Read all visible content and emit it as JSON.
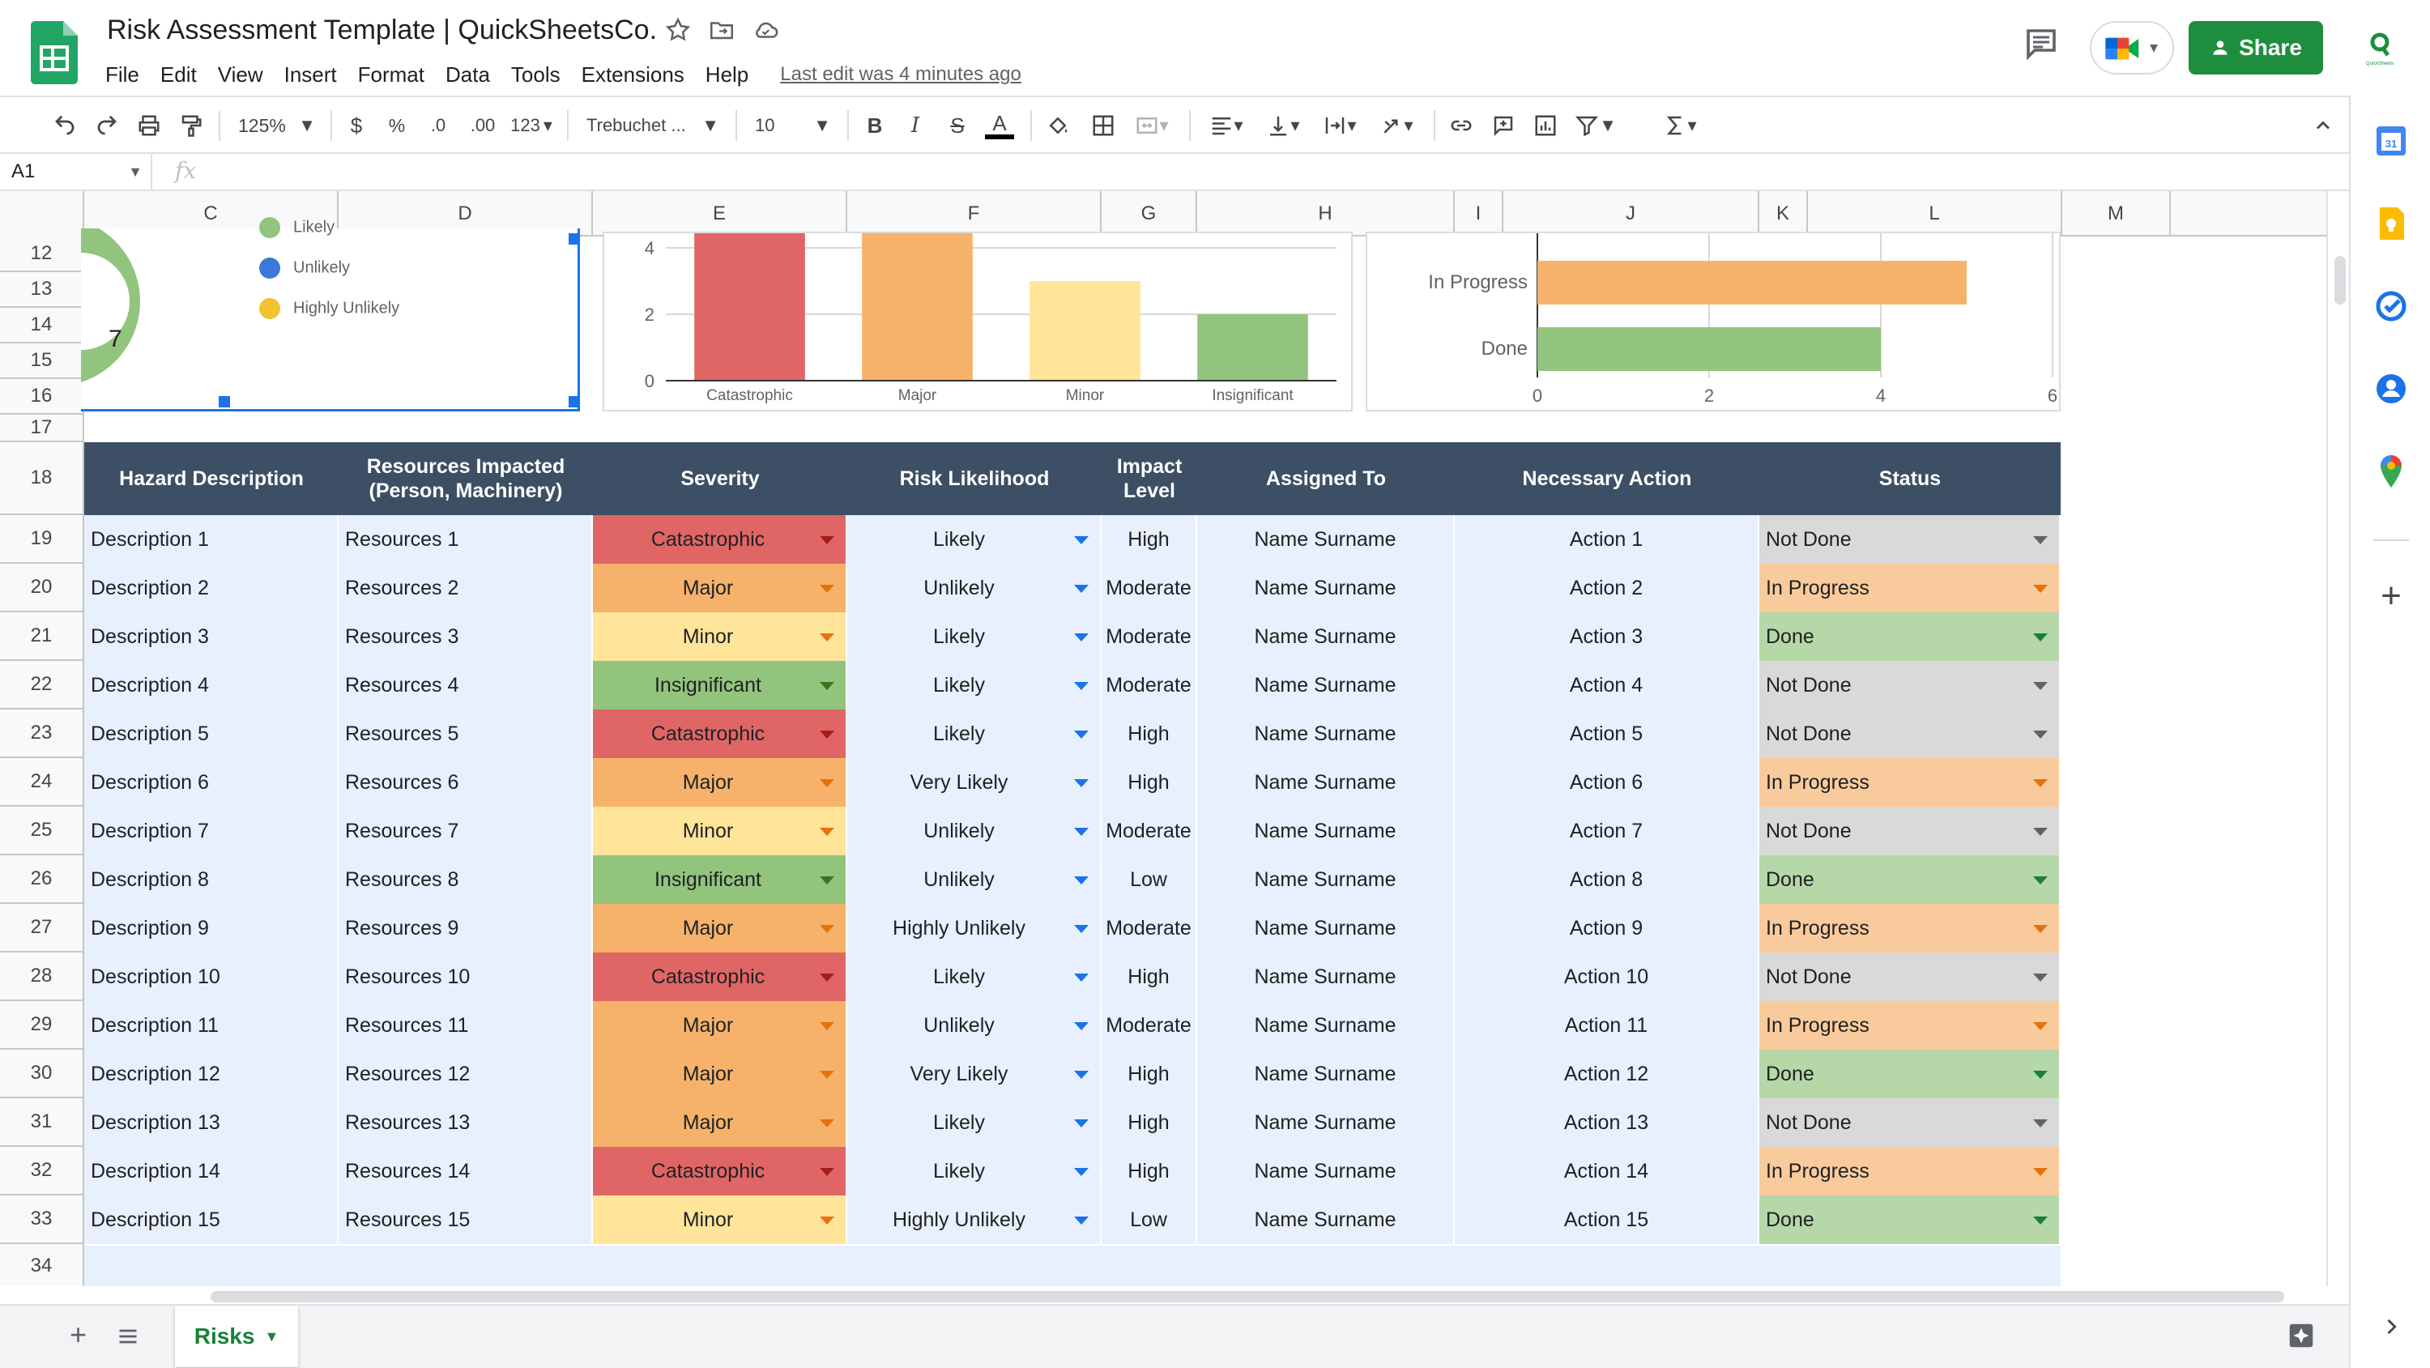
{
  "doc": {
    "title": "Risk Assessment Template | QuickSheetsCo.",
    "last_edit": "Last edit was 4 minutes ago",
    "share_label": "Share"
  },
  "menu": [
    "File",
    "Edit",
    "View",
    "Insert",
    "Format",
    "Data",
    "Tools",
    "Extensions",
    "Help"
  ],
  "toolbar": {
    "zoom": "125%",
    "currency": "$",
    "percent": "%",
    "dec_less": ".0",
    "dec_more": ".00",
    "number_format": "123",
    "font": "Trebuchet ...",
    "font_size": "10",
    "bold": "B",
    "italic": "I",
    "strike": "S",
    "text_color": "A"
  },
  "formula_bar": {
    "name_box": "A1",
    "fx": "fx"
  },
  "columns": [
    "C",
    "D",
    "E",
    "F",
    "G",
    "H",
    "I",
    "J",
    "K",
    "L",
    "M"
  ],
  "rows": [
    "12",
    "13",
    "14",
    "15",
    "16",
    "17",
    "18",
    "19",
    "20",
    "21",
    "22",
    "23",
    "24",
    "25",
    "26",
    "27",
    "28",
    "29",
    "30",
    "31",
    "32",
    "33",
    "34"
  ],
  "pie_chart": {
    "value_label": "7",
    "legend": [
      "Likely",
      "Unlikely",
      "Highly Unlikely"
    ],
    "legend_colors": [
      "#93c47d",
      "#3c78d8",
      "#f1c232"
    ]
  },
  "chart_data": [
    {
      "type": "bar",
      "categories": [
        "Catastrophic",
        "Major",
        "Minor",
        "Insignificant"
      ],
      "values": [
        4.5,
        4.5,
        3,
        2
      ],
      "colors": [
        "#e06666",
        "#f6b26b",
        "#ffe599",
        "#93c47d"
      ],
      "ylim": [
        0,
        4.5
      ],
      "yticks": [
        "0",
        "2",
        "4"
      ],
      "grid": true
    },
    {
      "type": "bar",
      "orientation": "horizontal",
      "categories": [
        "In Progress",
        "Done"
      ],
      "values": [
        5,
        4
      ],
      "colors": [
        "#f6b26b",
        "#93c47d"
      ],
      "xlim": [
        0,
        6
      ],
      "xticks": [
        "0",
        "2",
        "4",
        "6"
      ],
      "grid": true
    }
  ],
  "table": {
    "headers": [
      "Hazard Description",
      "Resources Impacted\n(Person, Machinery)",
      "Severity",
      "Risk Likelihood",
      "Impact\nLevel",
      "Assigned To",
      "Necessary Action",
      "Status"
    ],
    "rows": [
      {
        "desc": "Description 1",
        "res": "Resources 1",
        "sev": "Catastrophic",
        "like": "Likely",
        "impact": "High",
        "assigned": "Name Surname",
        "action": "Action 1",
        "status": "Not Done"
      },
      {
        "desc": "Description 2",
        "res": "Resources 2",
        "sev": "Major",
        "like": "Unlikely",
        "impact": "Moderate",
        "assigned": "Name Surname",
        "action": "Action 2",
        "status": "In Progress"
      },
      {
        "desc": "Description 3",
        "res": "Resources 3",
        "sev": "Minor",
        "like": "Likely",
        "impact": "Moderate",
        "assigned": "Name Surname",
        "action": "Action 3",
        "status": "Done"
      },
      {
        "desc": "Description 4",
        "res": "Resources 4",
        "sev": "Insignificant",
        "like": "Likely",
        "impact": "Moderate",
        "assigned": "Name Surname",
        "action": "Action 4",
        "status": "Not Done"
      },
      {
        "desc": "Description 5",
        "res": "Resources 5",
        "sev": "Catastrophic",
        "like": "Likely",
        "impact": "High",
        "assigned": "Name Surname",
        "action": "Action 5",
        "status": "Not Done"
      },
      {
        "desc": "Description 6",
        "res": "Resources 6",
        "sev": "Major",
        "like": "Very Likely",
        "impact": "High",
        "assigned": "Name Surname",
        "action": "Action 6",
        "status": "In Progress"
      },
      {
        "desc": "Description 7",
        "res": "Resources 7",
        "sev": "Minor",
        "like": "Unlikely",
        "impact": "Moderate",
        "assigned": "Name Surname",
        "action": "Action 7",
        "status": "Not Done"
      },
      {
        "desc": "Description 8",
        "res": "Resources 8",
        "sev": "Insignificant",
        "like": "Unlikely",
        "impact": "Low",
        "assigned": "Name Surname",
        "action": "Action 8",
        "status": "Done"
      },
      {
        "desc": "Description 9",
        "res": "Resources 9",
        "sev": "Major",
        "like": "Highly Unlikely",
        "impact": "Moderate",
        "assigned": "Name Surname",
        "action": "Action 9",
        "status": "In Progress"
      },
      {
        "desc": "Description 10",
        "res": "Resources 10",
        "sev": "Catastrophic",
        "like": "Likely",
        "impact": "High",
        "assigned": "Name Surname",
        "action": "Action 10",
        "status": "Not Done"
      },
      {
        "desc": "Description 11",
        "res": "Resources 11",
        "sev": "Major",
        "like": "Unlikely",
        "impact": "Moderate",
        "assigned": "Name Surname",
        "action": "Action 11",
        "status": "In Progress"
      },
      {
        "desc": "Description 12",
        "res": "Resources 12",
        "sev": "Major",
        "like": "Very Likely",
        "impact": "High",
        "assigned": "Name Surname",
        "action": "Action 12",
        "status": "Done"
      },
      {
        "desc": "Description 13",
        "res": "Resources 13",
        "sev": "Major",
        "like": "Likely",
        "impact": "High",
        "assigned": "Name Surname",
        "action": "Action 13",
        "status": "Not Done"
      },
      {
        "desc": "Description 14",
        "res": "Resources 14",
        "sev": "Catastrophic",
        "like": "Likely",
        "impact": "High",
        "assigned": "Name Surname",
        "action": "Action 14",
        "status": "In Progress"
      },
      {
        "desc": "Description 15",
        "res": "Resources 15",
        "sev": "Minor",
        "like": "Highly Unlikely",
        "impact": "Low",
        "assigned": "Name Surname",
        "action": "Action 15",
        "status": "Done"
      }
    ]
  },
  "severity_colors": {
    "Catastrophic": "#e06666",
    "Major": "#f6b26b",
    "Minor": "#ffe599",
    "Insignificant": "#93c47d"
  },
  "status_colors": {
    "Not Done": "#d9d9d9",
    "In Progress": "#f9cb9c",
    "Done": "#b6d7a8"
  },
  "header_color": "#3d4f64",
  "sheet_tab": "Risks"
}
